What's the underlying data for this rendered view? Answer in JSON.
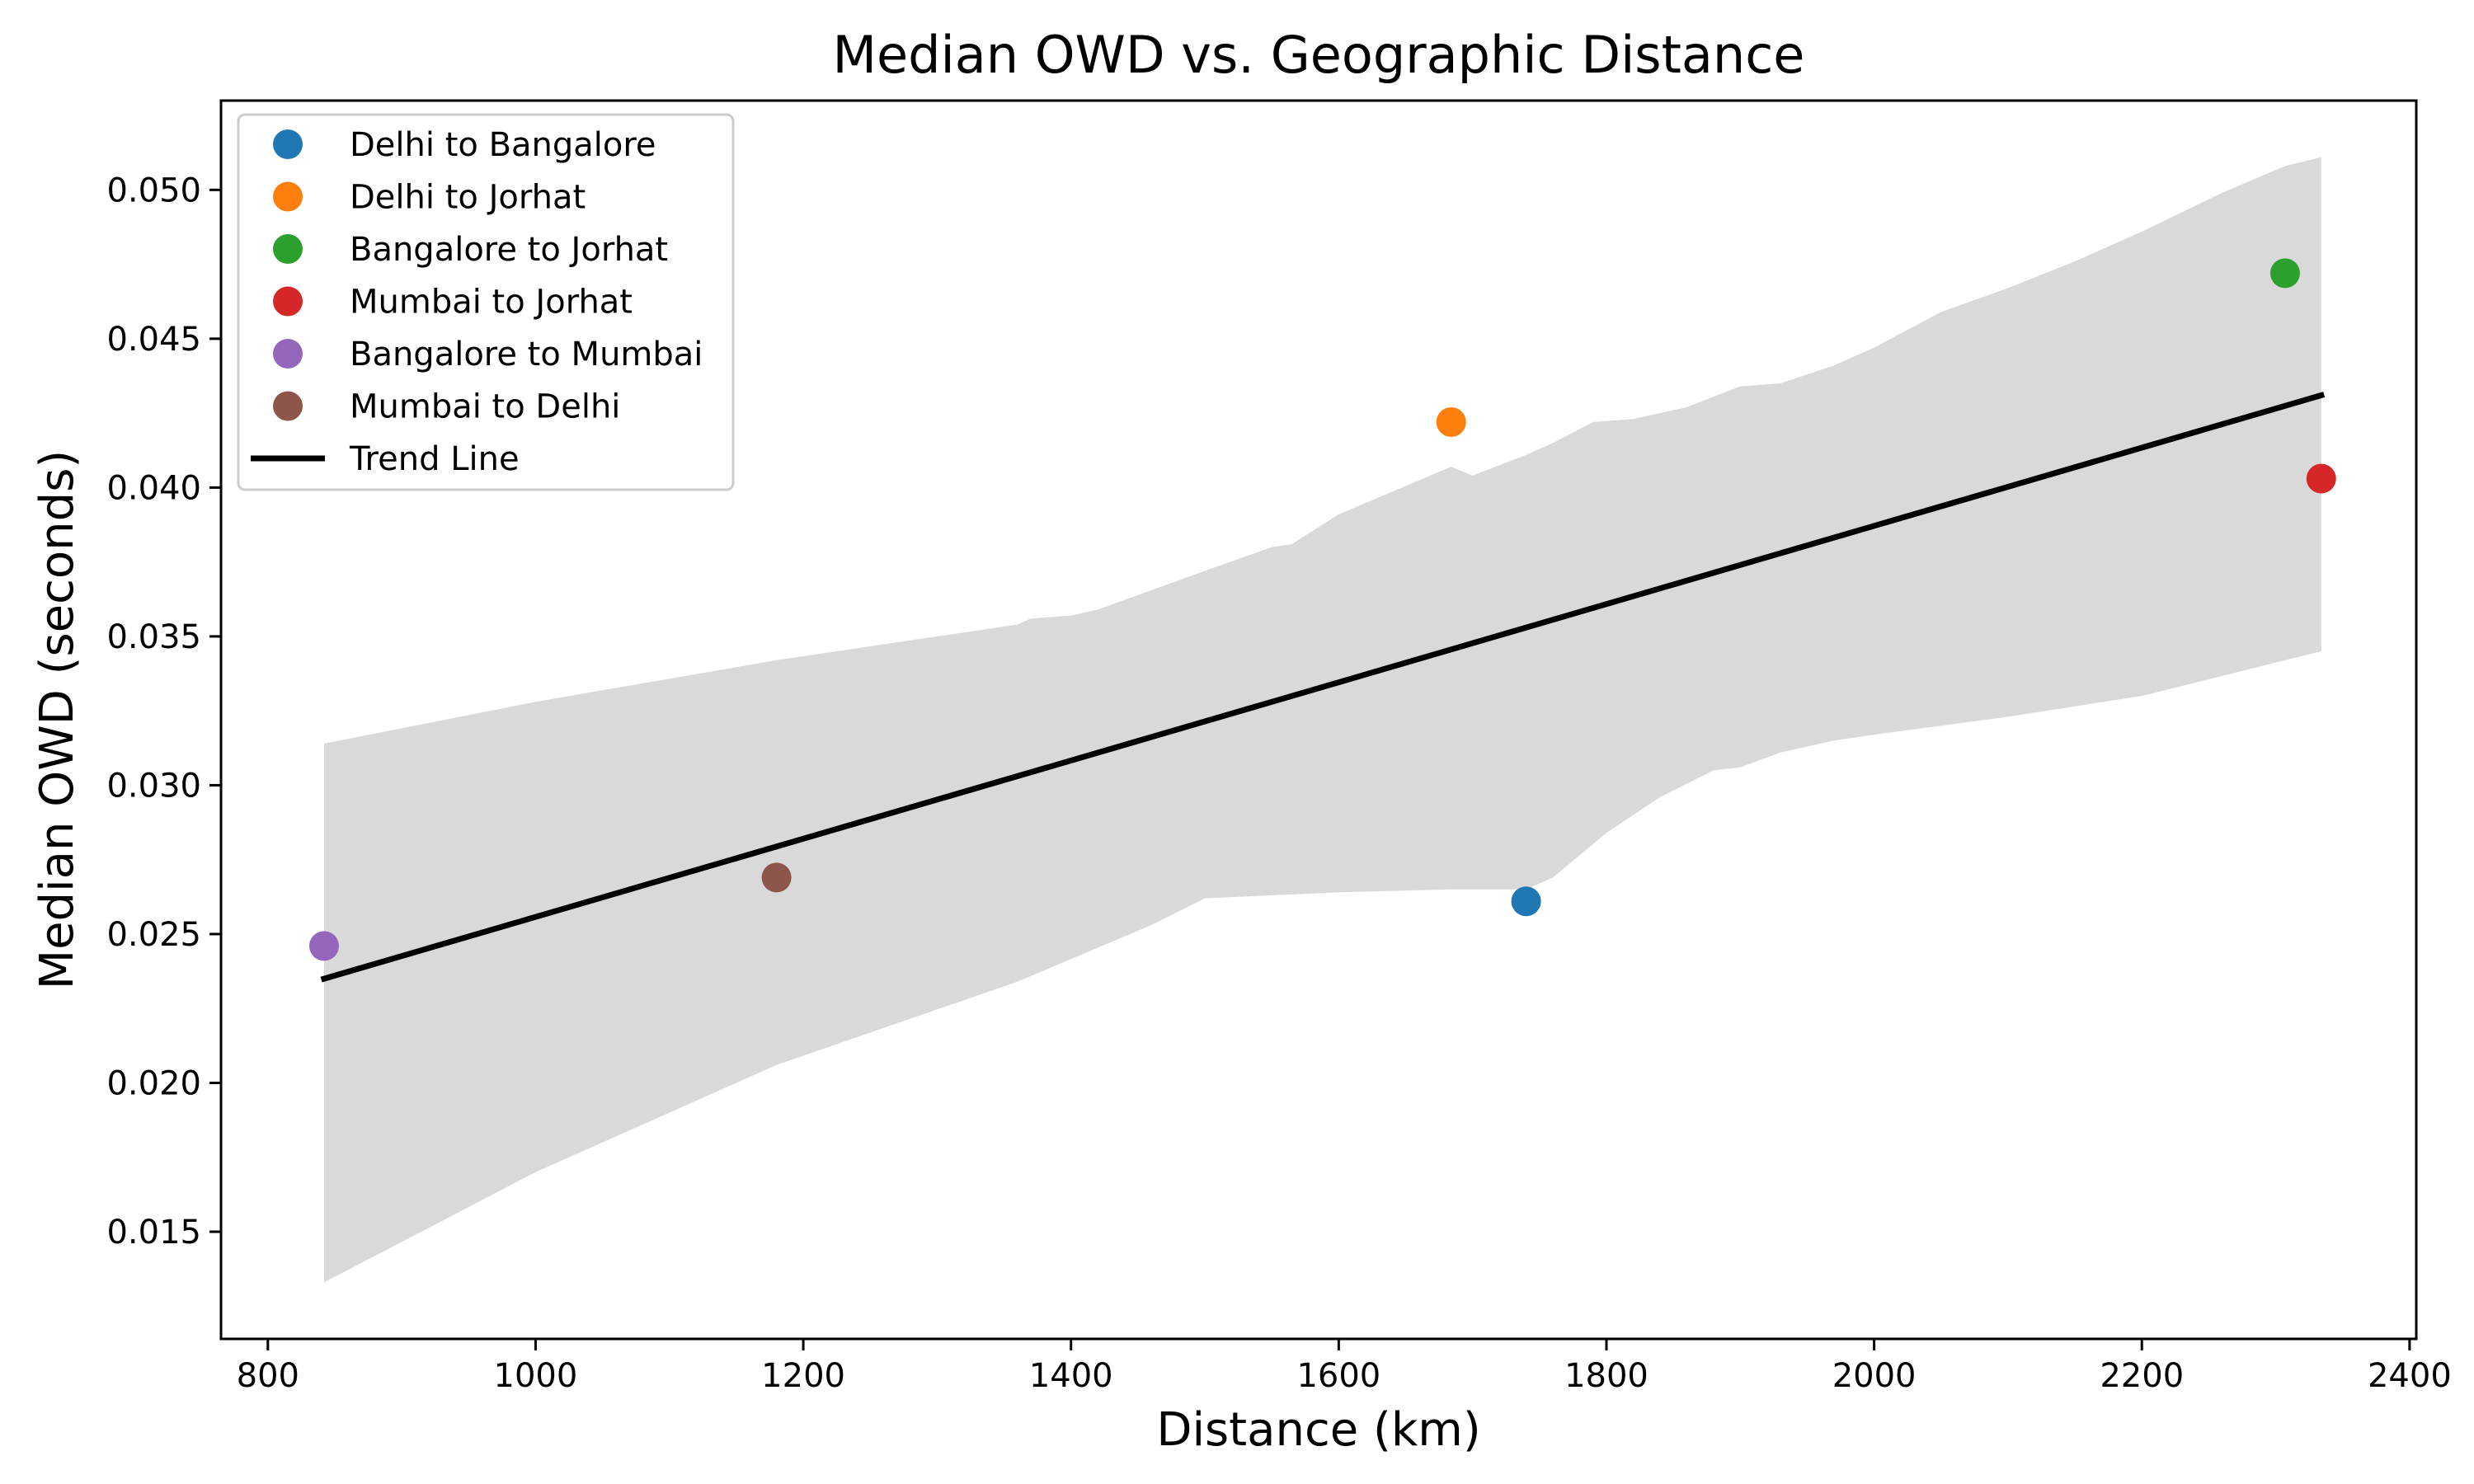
{
  "chart_data": {
    "type": "scatter",
    "title": "Median OWD vs. Geographic Distance",
    "xlabel": "Distance (km)",
    "ylabel": "Median OWD (seconds)",
    "xlim": [
      765,
      2405
    ],
    "ylim": [
      0.0114,
      0.053
    ],
    "x_ticks": [
      800,
      1000,
      1200,
      1400,
      1600,
      1800,
      2000,
      2200,
      2400
    ],
    "x_tick_labels": [
      "800",
      "1000",
      "1200",
      "1400",
      "1600",
      "1800",
      "2000",
      "2200",
      "2400"
    ],
    "y_ticks": [
      0.015,
      0.02,
      0.025,
      0.03,
      0.035,
      0.04,
      0.045,
      0.05
    ],
    "y_tick_labels": [
      "0.015",
      "0.020",
      "0.025",
      "0.030",
      "0.035",
      "0.040",
      "0.045",
      "0.050"
    ],
    "grid": false,
    "legend_position": "top-left",
    "series": [
      {
        "name": "Delhi to Bangalore",
        "color": "#1f77b4",
        "x": 1740,
        "y": 0.0261
      },
      {
        "name": "Delhi to Jorhat",
        "color": "#ff7f0e",
        "x": 1684,
        "y": 0.0422
      },
      {
        "name": "Bangalore to Jorhat",
        "color": "#2ca02c",
        "x": 2307,
        "y": 0.0472
      },
      {
        "name": "Mumbai to Jorhat",
        "color": "#d62728",
        "x": 2334,
        "y": 0.0403
      },
      {
        "name": "Bangalore to Mumbai",
        "color": "#9467bd",
        "x": 842,
        "y": 0.0246
      },
      {
        "name": "Mumbai to Delhi",
        "color": "#8c564b",
        "x": 1180,
        "y": 0.0269
      }
    ],
    "trend_line": {
      "name": "Trend Line",
      "color": "#000000",
      "x": [
        842,
        2334
      ],
      "y": [
        0.0235,
        0.0431
      ]
    },
    "confidence_band": {
      "color": "#d9d9d9",
      "upper": [
        [
          842,
          0.0314
        ],
        [
          1000,
          0.0328
        ],
        [
          1180,
          0.0342
        ],
        [
          1360,
          0.0354
        ],
        [
          1370,
          0.0356
        ],
        [
          1400,
          0.0357
        ],
        [
          1420,
          0.0359
        ],
        [
          1500,
          0.0372
        ],
        [
          1550,
          0.038
        ],
        [
          1565,
          0.0381
        ],
        [
          1600,
          0.0391
        ],
        [
          1684,
          0.0407
        ],
        [
          1700,
          0.0404
        ],
        [
          1740,
          0.0411
        ],
        [
          1760,
          0.0415
        ],
        [
          1790,
          0.0422
        ],
        [
          1820,
          0.0423
        ],
        [
          1860,
          0.0427
        ],
        [
          1900,
          0.0434
        ],
        [
          1930,
          0.0435
        ],
        [
          1970,
          0.0441
        ],
        [
          2000,
          0.0447
        ],
        [
          2050,
          0.0459
        ],
        [
          2100,
          0.0467
        ],
        [
          2150,
          0.0476
        ],
        [
          2200,
          0.0486
        ],
        [
          2260,
          0.0499
        ],
        [
          2307,
          0.0508
        ],
        [
          2334,
          0.0511
        ]
      ],
      "lower": [
        [
          842,
          0.0133
        ],
        [
          1000,
          0.017
        ],
        [
          1180,
          0.0206
        ],
        [
          1360,
          0.0234
        ],
        [
          1460,
          0.0253
        ],
        [
          1500,
          0.0262
        ],
        [
          1600,
          0.0264
        ],
        [
          1684,
          0.0265
        ],
        [
          1740,
          0.0265
        ],
        [
          1760,
          0.0269
        ],
        [
          1800,
          0.0284
        ],
        [
          1840,
          0.0296
        ],
        [
          1880,
          0.0305
        ],
        [
          1900,
          0.0306
        ],
        [
          1930,
          0.0311
        ],
        [
          1970,
          0.0315
        ],
        [
          2000,
          0.0317
        ],
        [
          2100,
          0.0323
        ],
        [
          2200,
          0.033
        ],
        [
          2307,
          0.0342
        ],
        [
          2334,
          0.0345
        ]
      ]
    }
  }
}
